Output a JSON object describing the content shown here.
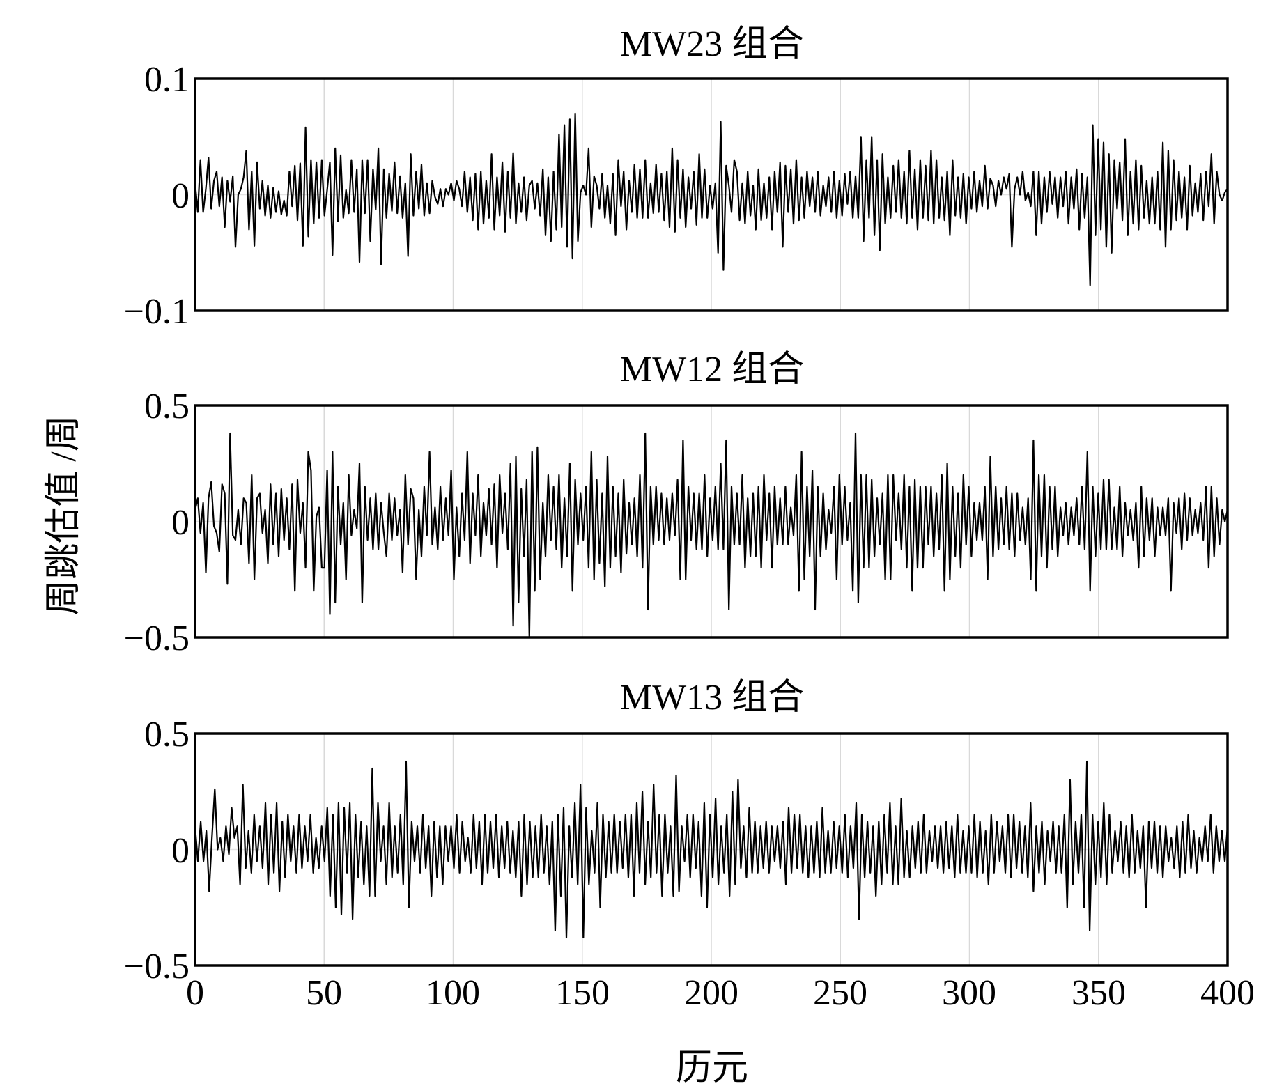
{
  "figure": {
    "ylabel": "周跳估值 /周",
    "xlabel": "历元",
    "x_ticks": [
      "0",
      "50",
      "100",
      "150",
      "200",
      "250",
      "300",
      "350",
      "400"
    ]
  },
  "chart_data": [
    {
      "type": "line",
      "title": "MW23 组合",
      "xlabel": "历元",
      "ylabel": "周跳估值 /周",
      "xlim": [
        0,
        400
      ],
      "ylim": [
        -0.1,
        0.1
      ],
      "y_ticks": [
        "0.1",
        "0",
        "−0.1"
      ],
      "x_tick_values": [
        0,
        50,
        100,
        150,
        200,
        250,
        300,
        350,
        400
      ],
      "grid": "vertical",
      "line_color": "#000000",
      "values": [
        0.01,
        -0.015,
        0.03,
        -0.015,
        0.005,
        0.032,
        -0.012,
        0.012,
        0.02,
        -0.01,
        0.015,
        -0.028,
        0.012,
        -0.006,
        0.016,
        -0.045,
        0.0,
        0.005,
        0.015,
        0.038,
        -0.03,
        0.02,
        -0.044,
        0.028,
        -0.012,
        0.012,
        -0.018,
        0.008,
        -0.02,
        0.006,
        -0.015,
        0.003,
        -0.017,
        -0.005,
        -0.018,
        0.02,
        -0.01,
        0.025,
        -0.022,
        0.027,
        -0.044,
        0.058,
        -0.036,
        0.03,
        -0.025,
        0.028,
        -0.02,
        0.03,
        -0.018,
        0.004,
        0.028,
        -0.052,
        0.04,
        -0.023,
        0.034,
        -0.02,
        0.004,
        -0.016,
        0.03,
        -0.015,
        0.022,
        -0.058,
        0.03,
        -0.016,
        0.03,
        -0.04,
        0.022,
        -0.013,
        0.04,
        -0.06,
        0.022,
        -0.02,
        0.018,
        -0.014,
        0.028,
        -0.016,
        0.016,
        -0.02,
        0.01,
        -0.053,
        0.035,
        -0.018,
        0.02,
        -0.012,
        0.026,
        -0.018,
        0.01,
        -0.016,
        0.012,
        -0.002,
        -0.008,
        0.005,
        -0.01,
        0.005,
        0.0,
        0.01,
        -0.005,
        0.012,
        0.005,
        -0.01,
        0.02,
        -0.015,
        0.015,
        -0.022,
        0.018,
        -0.03,
        0.02,
        -0.025,
        0.012,
        -0.02,
        0.035,
        -0.03,
        0.015,
        -0.018,
        0.028,
        -0.032,
        0.02,
        -0.02,
        0.036,
        -0.025,
        0.01,
        -0.015,
        0.015,
        -0.022,
        0.008,
        0.012,
        -0.012,
        0.01,
        -0.018,
        0.022,
        -0.035,
        0.015,
        -0.04,
        0.02,
        -0.03,
        0.052,
        -0.028,
        0.06,
        -0.045,
        0.065,
        -0.055,
        0.07,
        -0.04,
        0.002,
        0.008,
        0.0,
        0.04,
        -0.028,
        0.016,
        0.008,
        -0.012,
        0.018,
        -0.02,
        0.008,
        -0.025,
        0.018,
        -0.035,
        0.03,
        -0.01,
        0.02,
        -0.03,
        0.012,
        -0.015,
        0.026,
        -0.02,
        0.022,
        -0.02,
        0.03,
        -0.02,
        0.01,
        -0.016,
        0.026,
        -0.015,
        0.018,
        -0.022,
        0.02,
        -0.028,
        0.04,
        -0.032,
        0.03,
        -0.02,
        0.022,
        -0.028,
        0.015,
        -0.012,
        0.02,
        -0.026,
        0.035,
        -0.02,
        0.022,
        -0.02,
        0.008,
        -0.012,
        0.01,
        -0.05,
        0.063,
        -0.065,
        0.025,
        0.008,
        -0.015,
        0.03,
        0.02,
        -0.022,
        0.01,
        -0.025,
        0.02,
        -0.018,
        0.008,
        -0.03,
        0.022,
        -0.022,
        0.01,
        -0.02,
        0.015,
        -0.03,
        0.02,
        -0.015,
        0.028,
        -0.045,
        0.025,
        -0.015,
        0.022,
        -0.025,
        0.03,
        -0.022,
        0.015,
        -0.02,
        0.02,
        -0.01,
        0.015,
        -0.015,
        0.02,
        -0.018,
        0.008,
        -0.01,
        0.015,
        -0.015,
        0.02,
        -0.02,
        0.012,
        -0.018,
        0.018,
        -0.008,
        0.02,
        -0.02,
        0.016,
        -0.02,
        0.05,
        -0.04,
        0.03,
        -0.02,
        0.05,
        -0.035,
        0.03,
        -0.048,
        0.035,
        -0.025,
        0.015,
        -0.02,
        0.025,
        -0.015,
        0.03,
        -0.02,
        0.02,
        -0.025,
        0.038,
        -0.02,
        0.022,
        -0.03,
        0.03,
        -0.02,
        0.025,
        -0.022,
        0.038,
        -0.025,
        0.03,
        -0.02,
        0.015,
        -0.022,
        0.02,
        -0.035,
        0.03,
        -0.018,
        0.015,
        -0.02,
        0.018,
        -0.025,
        0.015,
        -0.012,
        0.02,
        -0.015,
        0.012,
        -0.01,
        0.025,
        -0.012,
        0.014,
        0.008,
        -0.01,
        0.012,
        0.0,
        0.015,
        0.005,
        0.018,
        -0.045,
        0.005,
        0.015,
        0.0,
        0.02,
        -0.005,
        0.002,
        -0.01,
        0.02,
        -0.035,
        0.02,
        -0.025,
        0.015,
        -0.015,
        0.02,
        -0.008,
        0.015,
        -0.02,
        0.015,
        -0.01,
        0.02,
        -0.025,
        0.015,
        -0.012,
        0.022,
        -0.03,
        0.018,
        -0.02,
        0.015,
        -0.078,
        0.06,
        -0.035,
        0.048,
        -0.03,
        0.045,
        -0.045,
        0.035,
        -0.05,
        0.03,
        -0.012,
        0.028,
        -0.022,
        0.048,
        -0.035,
        0.02,
        -0.025,
        0.03,
        -0.03,
        0.025,
        -0.02,
        0.012,
        -0.025,
        0.015,
        -0.025,
        0.02,
        -0.03,
        0.045,
        -0.045,
        0.038,
        -0.03,
        0.03,
        -0.022,
        0.02,
        -0.02,
        0.015,
        -0.03,
        0.025,
        -0.018,
        0.01,
        -0.015,
        0.018,
        -0.022,
        0.02,
        -0.01,
        0.035,
        -0.025,
        0.02,
        0.0,
        -0.005,
        0.002,
        0.005
      ]
    },
    {
      "type": "line",
      "title": "MW12 组合",
      "xlabel": "历元",
      "ylabel": "周跳估值 /周",
      "xlim": [
        0,
        400
      ],
      "ylim": [
        -0.5,
        0.5
      ],
      "y_ticks": [
        "0.5",
        "0",
        "−0.5"
      ],
      "x_tick_values": [
        0,
        50,
        100,
        150,
        200,
        250,
        300,
        350,
        400
      ],
      "grid": "vertical",
      "line_color": "#000000",
      "values": [
        0.05,
        0.1,
        -0.05,
        0.08,
        -0.22,
        0.1,
        0.17,
        -0.02,
        -0.05,
        -0.13,
        0.16,
        0.12,
        -0.27,
        0.38,
        -0.06,
        -0.08,
        0.05,
        -0.1,
        0.1,
        0.08,
        -0.18,
        0.2,
        -0.25,
        0.1,
        0.12,
        -0.05,
        0.05,
        -0.18,
        0.16,
        -0.1,
        0.12,
        -0.15,
        0.14,
        -0.08,
        0.1,
        -0.12,
        0.16,
        -0.3,
        0.18,
        -0.05,
        0.08,
        -0.2,
        0.3,
        0.22,
        -0.3,
        0.02,
        0.06,
        -0.2,
        -0.2,
        0.22,
        -0.4,
        0.3,
        -0.35,
        0.15,
        -0.1,
        0.08,
        -0.25,
        0.2,
        -0.06,
        0.05,
        -0.03,
        0.25,
        -0.35,
        0.15,
        -0.08,
        0.1,
        -0.12,
        0.12,
        -0.12,
        0.08,
        -0.05,
        -0.15,
        0.12,
        -0.08,
        0.1,
        -0.06,
        0.05,
        -0.22,
        0.2,
        -0.1,
        0.14,
        0.1,
        -0.25,
        0.05,
        -0.15,
        0.15,
        -0.06,
        0.3,
        -0.1,
        0.06,
        -0.12,
        0.15,
        -0.08,
        0.1,
        -0.06,
        0.22,
        -0.25,
        0.06,
        -0.15,
        0.12,
        -0.08,
        0.3,
        -0.18,
        0.12,
        -0.06,
        0.2,
        -0.15,
        0.08,
        -0.06,
        0.14,
        -0.1,
        0.16,
        -0.2,
        0.2,
        -0.05,
        0.12,
        -0.12,
        0.25,
        -0.45,
        0.28,
        -0.35,
        0.14,
        -0.15,
        0.18,
        -0.5,
        0.3,
        -0.3,
        0.32,
        -0.25,
        0.08,
        -0.15,
        0.2,
        -0.08,
        0.15,
        -0.12,
        0.2,
        -0.2,
        0.1,
        -0.15,
        0.25,
        -0.3,
        0.18,
        -0.1,
        0.12,
        -0.08,
        0.15,
        -0.2,
        0.3,
        -0.25,
        0.18,
        -0.18,
        0.12,
        -0.28,
        0.28,
        -0.2,
        0.15,
        -0.15,
        0.12,
        -0.22,
        0.18,
        -0.14,
        0.08,
        -0.1,
        0.1,
        -0.15,
        0.2,
        -0.2,
        0.38,
        -0.38,
        0.15,
        -0.1,
        0.15,
        -0.08,
        0.12,
        -0.1,
        0.1,
        -0.08,
        0.12,
        -0.06,
        0.18,
        -0.25,
        0.35,
        -0.25,
        0.15,
        -0.08,
        0.12,
        -0.12,
        0.12,
        -0.12,
        0.2,
        -0.15,
        0.1,
        -0.08,
        0.15,
        -0.12,
        0.25,
        -0.12,
        0.35,
        -0.38,
        0.15,
        -0.1,
        0.12,
        -0.1,
        0.2,
        -0.2,
        0.1,
        -0.15,
        0.12,
        -0.15,
        0.15,
        -0.2,
        0.2,
        -0.08,
        0.12,
        -0.2,
        0.15,
        -0.1,
        0.1,
        -0.1,
        0.15,
        -0.1,
        0.06,
        -0.06,
        0.2,
        -0.3,
        0.3,
        -0.25,
        0.15,
        -0.15,
        0.22,
        -0.38,
        0.15,
        -0.15,
        0.12,
        -0.12,
        0.05,
        -0.05,
        0.15,
        -0.25,
        0.2,
        -0.1,
        0.15,
        -0.08,
        0.08,
        -0.3,
        0.38,
        -0.35,
        0.2,
        -0.2,
        0.2,
        -0.2,
        0.18,
        -0.15,
        0.1,
        -0.1,
        0.12,
        -0.25,
        0.2,
        -0.25,
        0.2,
        -0.08,
        0.12,
        -0.12,
        0.2,
        -0.2,
        0.15,
        -0.3,
        0.18,
        -0.2,
        0.15,
        -0.2,
        0.15,
        -0.1,
        0.15,
        -0.15,
        0.12,
        -0.12,
        0.2,
        -0.3,
        0.25,
        -0.25,
        0.15,
        -0.15,
        0.12,
        -0.2,
        0.2,
        -0.1,
        0.15,
        -0.15,
        0.08,
        -0.08,
        0.08,
        -0.08,
        0.15,
        -0.25,
        0.28,
        -0.15,
        0.15,
        -0.12,
        0.1,
        -0.1,
        0.15,
        -0.12,
        0.12,
        -0.15,
        0.12,
        -0.08,
        0.06,
        -0.1,
        0.1,
        -0.25,
        0.35,
        -0.3,
        0.2,
        -0.15,
        0.2,
        -0.2,
        0.15,
        -0.12,
        0.15,
        -0.15,
        0.06,
        -0.06,
        0.08,
        -0.1,
        0.06,
        -0.06,
        0.1,
        -0.1,
        0.15,
        -0.12,
        0.3,
        -0.3,
        0.15,
        -0.15,
        0.12,
        -0.12,
        0.18,
        -0.12,
        0.18,
        -0.12,
        0.06,
        -0.12,
        0.15,
        -0.15,
        0.08,
        -0.06,
        0.05,
        -0.08,
        0.08,
        -0.2,
        0.15,
        -0.15,
        0.1,
        -0.08,
        0.1,
        -0.15,
        0.06,
        -0.06,
        0.06,
        -0.06,
        0.1,
        -0.3,
        0.08,
        -0.05,
        0.1,
        -0.12,
        0.12,
        -0.08,
        0.1,
        -0.06,
        0.05,
        -0.05,
        0.08,
        -0.08,
        0.15,
        -0.2,
        0.15,
        -0.15,
        0.1,
        -0.1,
        0.05,
        0.0,
        0.05
      ]
    },
    {
      "type": "line",
      "title": "MW13 组合",
      "xlabel": "历元",
      "ylabel": "周跳估值 /周",
      "xlim": [
        0,
        400
      ],
      "ylim": [
        -0.5,
        0.5
      ],
      "y_ticks": [
        "0.5",
        "0",
        "−0.5"
      ],
      "x_tick_values": [
        0,
        50,
        100,
        150,
        200,
        250,
        300,
        350,
        400
      ],
      "grid": "vertical",
      "line_color": "#000000",
      "values": [
        0.1,
        -0.05,
        0.12,
        -0.05,
        0.08,
        -0.18,
        0.05,
        0.26,
        0.0,
        0.05,
        -0.05,
        0.1,
        -0.02,
        0.18,
        0.05,
        0.1,
        -0.15,
        0.28,
        -0.08,
        0.08,
        -0.1,
        0.15,
        -0.05,
        0.1,
        -0.08,
        0.2,
        -0.15,
        0.15,
        -0.1,
        0.2,
        -0.18,
        0.12,
        -0.12,
        0.15,
        -0.05,
        0.1,
        -0.1,
        0.15,
        -0.08,
        0.1,
        -0.05,
        0.15,
        -0.1,
        0.05,
        -0.08,
        0.1,
        -0.05,
        0.18,
        -0.2,
        0.15,
        -0.25,
        0.2,
        -0.28,
        0.18,
        -0.1,
        0.2,
        -0.3,
        0.15,
        -0.12,
        0.12,
        -0.15,
        0.1,
        -0.2,
        0.35,
        -0.2,
        0.2,
        -0.05,
        0.1,
        -0.15,
        0.2,
        -0.12,
        0.1,
        -0.1,
        0.15,
        -0.15,
        0.38,
        -0.25,
        0.12,
        -0.05,
        0.1,
        -0.1,
        0.15,
        -0.08,
        0.1,
        -0.2,
        0.12,
        -0.12,
        0.1,
        -0.15,
        0.1,
        -0.05,
        0.1,
        -0.08,
        0.15,
        -0.1,
        0.12,
        -0.05,
        0.05,
        -0.1,
        0.15,
        -0.08,
        0.12,
        -0.15,
        0.15,
        -0.1,
        0.12,
        -0.08,
        0.15,
        -0.12,
        0.1,
        -0.08,
        0.12,
        -0.1,
        0.08,
        -0.12,
        0.12,
        -0.2,
        0.15,
        -0.15,
        0.12,
        -0.12,
        0.1,
        -0.12,
        0.15,
        -0.1,
        0.1,
        -0.15,
        0.12,
        -0.35,
        0.15,
        -0.2,
        0.18,
        -0.38,
        0.1,
        -0.12,
        0.2,
        -0.15,
        0.28,
        -0.38,
        0.18,
        -0.15,
        0.08,
        -0.1,
        0.2,
        -0.25,
        0.15,
        -0.12,
        0.12,
        -0.1,
        0.15,
        -0.1,
        0.12,
        -0.08,
        0.15,
        -0.12,
        0.15,
        -0.2,
        0.2,
        -0.1,
        0.25,
        -0.15,
        0.12,
        -0.12,
        0.28,
        -0.1,
        0.15,
        -0.2,
        0.15,
        -0.1,
        0.1,
        -0.2,
        0.32,
        -0.18,
        0.1,
        -0.05,
        0.15,
        -0.12,
        0.15,
        -0.08,
        0.12,
        -0.2,
        0.2,
        -0.25,
        0.15,
        -0.12,
        0.22,
        -0.15,
        0.1,
        -0.1,
        0.15,
        -0.2,
        0.25,
        -0.15,
        0.3,
        -0.08,
        0.1,
        -0.12,
        0.18,
        -0.1,
        0.12,
        -0.1,
        0.1,
        -0.08,
        0.12,
        -0.1,
        0.1,
        -0.05,
        0.1,
        -0.08,
        0.12,
        -0.15,
        0.18,
        -0.1,
        0.15,
        -0.08,
        0.15,
        -0.1,
        0.1,
        -0.12,
        0.1,
        -0.1,
        0.12,
        -0.12,
        0.18,
        -0.1,
        0.08,
        -0.1,
        0.12,
        -0.08,
        0.1,
        -0.1,
        0.15,
        -0.12,
        0.1,
        -0.08,
        0.2,
        -0.3,
        0.15,
        -0.12,
        0.12,
        -0.1,
        0.1,
        -0.2,
        0.12,
        -0.15,
        0.15,
        -0.1,
        0.2,
        -0.15,
        0.1,
        -0.15,
        0.22,
        -0.12,
        0.08,
        -0.12,
        0.1,
        -0.08,
        0.12,
        -0.1,
        0.15,
        -0.1,
        0.08,
        -0.05,
        0.1,
        -0.08,
        0.1,
        -0.1,
        0.12,
        -0.08,
        0.1,
        -0.12,
        0.15,
        -0.1,
        0.08,
        -0.1,
        0.1,
        -0.1,
        0.15,
        -0.12,
        0.12,
        -0.1,
        0.08,
        -0.15,
        0.15,
        -0.1,
        0.12,
        -0.05,
        0.1,
        -0.1,
        0.15,
        -0.12,
        0.15,
        -0.08,
        0.12,
        -0.1,
        0.1,
        -0.12,
        0.2,
        -0.18,
        0.1,
        -0.1,
        0.12,
        -0.15,
        0.08,
        -0.05,
        0.12,
        -0.1,
        0.1,
        -0.1,
        0.15,
        -0.25,
        0.3,
        -0.15,
        0.12,
        -0.1,
        0.15,
        -0.25,
        0.38,
        -0.35,
        0.15,
        -0.15,
        0.12,
        -0.12,
        0.2,
        -0.15,
        0.15,
        -0.1,
        0.08,
        -0.05,
        0.12,
        -0.1,
        0.1,
        -0.12,
        0.15,
        -0.1,
        0.08,
        -0.08,
        0.1,
        -0.25,
        0.12,
        -0.08,
        0.12,
        -0.1,
        0.1,
        -0.12,
        0.1,
        -0.05,
        0.05,
        -0.08,
        0.1,
        -0.12,
        0.12,
        -0.1,
        0.15,
        -0.08,
        0.08,
        -0.1,
        0.05,
        -0.05,
        0.1,
        -0.05,
        0.15,
        -0.1,
        0.1,
        -0.05,
        0.08,
        -0.05,
        0.1
      ]
    }
  ]
}
